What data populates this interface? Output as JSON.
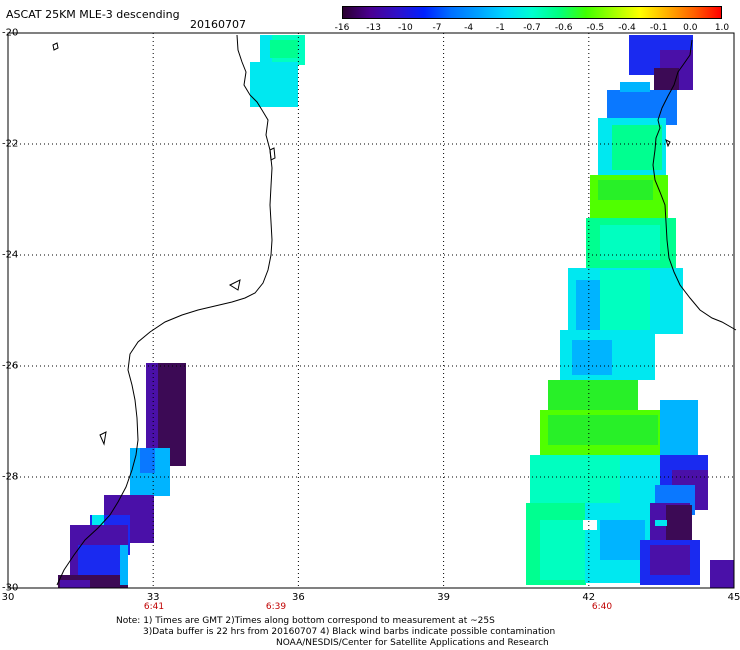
{
  "header": {
    "title": "ASCAT 25KM MLE-3 descending",
    "date": "20160707"
  },
  "colorbar": {
    "colors": [
      "#2a0030",
      "#4a0090",
      "#3010c8",
      "#0020ff",
      "#0070ff",
      "#00a0ff",
      "#00d8ff",
      "#00ffd0",
      "#00ff80",
      "#40ff00",
      "#a0ff00",
      "#ffff00",
      "#ffb000",
      "#ff6000",
      "#ff0000"
    ],
    "labels": [
      "-16",
      "-13",
      "-10",
      "-7",
      "-4",
      "-1",
      "-0.7",
      "-0.6",
      "-0.5",
      "-0.4",
      "-0.1",
      "0.0",
      "1.0"
    ]
  },
  "axes": {
    "y_labels": [
      "-20",
      "-22",
      "-24",
      "-26",
      "-28",
      "-30"
    ],
    "x_labels": [
      "30",
      "33",
      "36",
      "39",
      "42",
      "45"
    ],
    "time_labels": [
      "6:41",
      "6:39",
      "6:40"
    ]
  },
  "notes": [
    "Note: 1) Times are GMT 2)Times along bottom correspond to measurement at ~25S",
    "3)Data buffer is 22 hrs from 20160707 4) Black wind barbs indicate possible contamination",
    "NOAA/NESDIS/Center for Satellite Applications and Research"
  ],
  "map_data": {
    "lon_range": [
      30,
      45
    ],
    "lat_range": [
      -30,
      -20
    ],
    "colors": {
      "deep": "#3c0a55",
      "purple": "#4a10a8",
      "blue": "#1a2af0",
      "mid": "#0a78ff",
      "sky": "#00b4ff",
      "cyan": "#00e8f0",
      "aqua": "#00ffc0",
      "mint": "#00ff90",
      "green": "#28f028",
      "lime": "#50ff00"
    }
  }
}
